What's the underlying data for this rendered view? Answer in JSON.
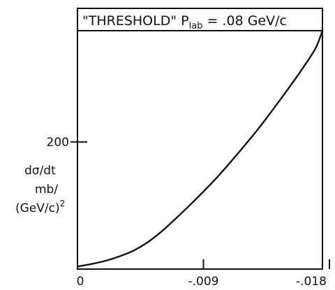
{
  "chart_data": {
    "type": "line",
    "title": {
      "prefix": "\"THRESHOLD\" P",
      "subscript": "lab",
      "suffix": " = .08 GeV/c"
    },
    "ylabel": {
      "line1": "dσ/dt",
      "line2": "mb/",
      "line3": "(GeV/c)",
      "exponent": "2"
    },
    "x_ticks": [
      {
        "value": 0,
        "label": "0"
      },
      {
        "value": -0.009,
        "label": "-.009"
      },
      {
        "value": -0.018,
        "label": "-.018"
      }
    ],
    "y_ticks": [
      {
        "value": 200,
        "label": "200"
      }
    ],
    "xlim": [
      0,
      -0.0175
    ],
    "ylim": [
      0,
      375
    ],
    "grid": false,
    "series": [
      {
        "x": [
          0,
          -0.001,
          -0.002,
          -0.003,
          -0.004,
          -0.005,
          -0.006,
          -0.007,
          -0.008,
          -0.009,
          -0.01,
          -0.011,
          -0.012,
          -0.013,
          -0.014,
          -0.015,
          -0.016,
          -0.017,
          -0.0175
        ],
        "y": [
          4,
          8,
          13,
          20,
          29,
          42,
          59,
          79,
          100,
          122,
          145,
          170,
          196,
          223,
          252,
          282,
          313,
          347,
          375
        ]
      }
    ]
  }
}
